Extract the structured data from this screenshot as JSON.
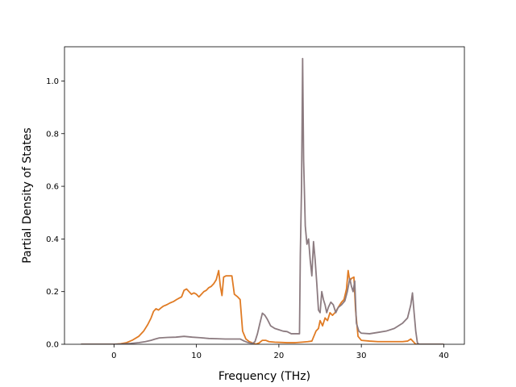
{
  "chart_data": {
    "type": "line",
    "title": "",
    "xlabel": "Frequency (THz)",
    "ylabel": "Partial Density of States",
    "xlim": [
      -6,
      42.5
    ],
    "ylim": [
      0,
      1.13
    ],
    "xticks": [
      0,
      10,
      20,
      30,
      40
    ],
    "yticks": [
      0.0,
      0.2,
      0.4,
      0.6,
      0.8,
      1.0
    ],
    "xtick_labels": [
      "0",
      "10",
      "20",
      "30",
      "40"
    ],
    "ytick_labels": [
      "0.0",
      "0.2",
      "0.4",
      "0.6",
      "0.8",
      "1.0"
    ],
    "grid": false,
    "legend": "none",
    "series": [
      {
        "color": "#e07b24",
        "points": [
          [
            -4,
            0
          ],
          [
            0,
            0
          ],
          [
            0.8,
            0.002
          ],
          [
            1.5,
            0.006
          ],
          [
            2.2,
            0.015
          ],
          [
            3,
            0.03
          ],
          [
            3.6,
            0.05
          ],
          [
            4.1,
            0.075
          ],
          [
            4.5,
            0.1
          ],
          [
            4.8,
            0.125
          ],
          [
            5.1,
            0.135
          ],
          [
            5.4,
            0.13
          ],
          [
            5.7,
            0.138
          ],
          [
            6,
            0.145
          ],
          [
            6.4,
            0.15
          ],
          [
            6.8,
            0.157
          ],
          [
            7.2,
            0.162
          ],
          [
            7.6,
            0.17
          ],
          [
            7.9,
            0.175
          ],
          [
            8.2,
            0.18
          ],
          [
            8.5,
            0.205
          ],
          [
            8.8,
            0.21
          ],
          [
            9.1,
            0.2
          ],
          [
            9.4,
            0.19
          ],
          [
            9.7,
            0.195
          ],
          [
            10,
            0.19
          ],
          [
            10.3,
            0.18
          ],
          [
            10.6,
            0.19
          ],
          [
            10.9,
            0.2
          ],
          [
            11.2,
            0.205
          ],
          [
            11.5,
            0.215
          ],
          [
            11.8,
            0.22
          ],
          [
            12.1,
            0.23
          ],
          [
            12.4,
            0.245
          ],
          [
            12.7,
            0.28
          ],
          [
            12.9,
            0.22
          ],
          [
            13.1,
            0.185
          ],
          [
            13.3,
            0.255
          ],
          [
            13.6,
            0.26
          ],
          [
            14,
            0.26
          ],
          [
            14.3,
            0.26
          ],
          [
            14.6,
            0.19
          ],
          [
            15,
            0.18
          ],
          [
            15.3,
            0.17
          ],
          [
            15.6,
            0.05
          ],
          [
            16,
            0.02
          ],
          [
            16.4,
            0.01
          ],
          [
            16.8,
            0.005
          ],
          [
            17.2,
            0
          ],
          [
            17.6,
            0.005
          ],
          [
            18,
            0.015
          ],
          [
            18.4,
            0.015
          ],
          [
            18.8,
            0.01
          ],
          [
            19.5,
            0.008
          ],
          [
            20.2,
            0.007
          ],
          [
            21,
            0.006
          ],
          [
            22,
            0.006
          ],
          [
            22.8,
            0.008
          ],
          [
            23.5,
            0.01
          ],
          [
            24,
            0.012
          ],
          [
            24.5,
            0.05
          ],
          [
            24.8,
            0.06
          ],
          [
            25,
            0.09
          ],
          [
            25.3,
            0.07
          ],
          [
            25.6,
            0.1
          ],
          [
            25.9,
            0.09
          ],
          [
            26.2,
            0.12
          ],
          [
            26.5,
            0.11
          ],
          [
            26.8,
            0.12
          ],
          [
            27.2,
            0.14
          ],
          [
            27.6,
            0.16
          ],
          [
            27.9,
            0.17
          ],
          [
            28.2,
            0.21
          ],
          [
            28.4,
            0.28
          ],
          [
            28.6,
            0.24
          ],
          [
            28.8,
            0.25
          ],
          [
            29.1,
            0.255
          ],
          [
            29.3,
            0.13
          ],
          [
            29.6,
            0.03
          ],
          [
            30,
            0.015
          ],
          [
            31,
            0.012
          ],
          [
            32,
            0.01
          ],
          [
            33,
            0.01
          ],
          [
            34,
            0.01
          ],
          [
            35,
            0.01
          ],
          [
            35.6,
            0.012
          ],
          [
            36,
            0.02
          ],
          [
            36.3,
            0.01
          ],
          [
            36.6,
            0
          ],
          [
            40,
            0
          ]
        ]
      },
      {
        "color": "#8c7b80",
        "points": [
          [
            -4,
            0
          ],
          [
            0,
            0
          ],
          [
            1,
            0.001
          ],
          [
            2,
            0.003
          ],
          [
            3,
            0.006
          ],
          [
            3.8,
            0.01
          ],
          [
            4.5,
            0.015
          ],
          [
            5,
            0.02
          ],
          [
            5.5,
            0.024
          ],
          [
            6.5,
            0.026
          ],
          [
            7.5,
            0.027
          ],
          [
            8.5,
            0.03
          ],
          [
            9.5,
            0.027
          ],
          [
            10.5,
            0.025
          ],
          [
            11.5,
            0.022
          ],
          [
            12.5,
            0.021
          ],
          [
            13.5,
            0.02
          ],
          [
            14.5,
            0.02
          ],
          [
            15.3,
            0.02
          ],
          [
            15.8,
            0.012
          ],
          [
            16.3,
            0.006
          ],
          [
            16.8,
            0.003
          ],
          [
            17.1,
            0.01
          ],
          [
            17.4,
            0.04
          ],
          [
            17.7,
            0.08
          ],
          [
            18,
            0.118
          ],
          [
            18.3,
            0.11
          ],
          [
            18.6,
            0.095
          ],
          [
            19,
            0.07
          ],
          [
            19.5,
            0.06
          ],
          [
            20,
            0.055
          ],
          [
            20.5,
            0.05
          ],
          [
            21,
            0.048
          ],
          [
            21.5,
            0.04
          ],
          [
            22,
            0.04
          ],
          [
            22.5,
            0.04
          ],
          [
            22.6,
            0.34
          ],
          [
            22.75,
            0.6
          ],
          [
            22.88,
            1.085
          ],
          [
            23,
            0.7
          ],
          [
            23.2,
            0.45
          ],
          [
            23.4,
            0.38
          ],
          [
            23.6,
            0.4
          ],
          [
            23.8,
            0.32
          ],
          [
            24,
            0.26
          ],
          [
            24.2,
            0.39
          ],
          [
            24.4,
            0.32
          ],
          [
            24.6,
            0.23
          ],
          [
            24.8,
            0.13
          ],
          [
            25,
            0.12
          ],
          [
            25.2,
            0.2
          ],
          [
            25.4,
            0.17
          ],
          [
            25.6,
            0.15
          ],
          [
            25.8,
            0.12
          ],
          [
            26,
            0.14
          ],
          [
            26.3,
            0.16
          ],
          [
            26.6,
            0.15
          ],
          [
            26.9,
            0.12
          ],
          [
            27.2,
            0.14
          ],
          [
            27.6,
            0.15
          ],
          [
            28,
            0.165
          ],
          [
            28.3,
            0.2
          ],
          [
            28.6,
            0.25
          ],
          [
            28.8,
            0.22
          ],
          [
            29,
            0.2
          ],
          [
            29.2,
            0.24
          ],
          [
            29.4,
            0.08
          ],
          [
            29.7,
            0.05
          ],
          [
            30,
            0.042
          ],
          [
            31,
            0.04
          ],
          [
            32,
            0.045
          ],
          [
            33,
            0.05
          ],
          [
            34,
            0.06
          ],
          [
            35,
            0.08
          ],
          [
            35.6,
            0.1
          ],
          [
            36,
            0.15
          ],
          [
            36.2,
            0.195
          ],
          [
            36.4,
            0.12
          ],
          [
            36.6,
            0.05
          ],
          [
            36.8,
            0.005
          ],
          [
            37,
            0
          ],
          [
            40,
            0
          ]
        ]
      }
    ]
  }
}
